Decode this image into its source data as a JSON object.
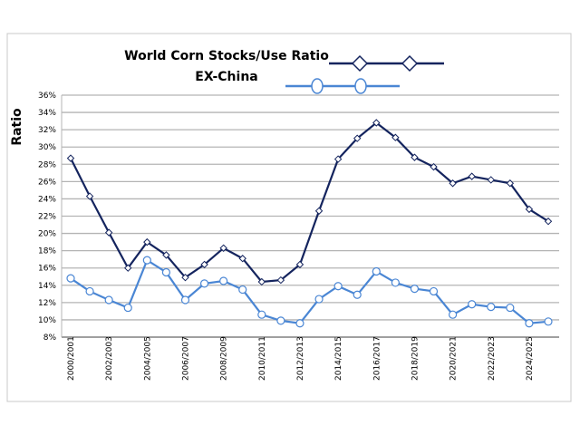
{
  "chart_data": {
    "type": "line",
    "title": "World Corn Stocks/Use Ratio",
    "subtitle": "EX-China",
    "xlabel": "",
    "ylabel": "Ratio",
    "ylim": [
      0.08,
      0.36
    ],
    "ytick_step": 0.02,
    "grid": true,
    "legend_placement": "top-right",
    "categories": [
      "2000/2001",
      "2001/2002",
      "2002/2003",
      "2003/2004",
      "2004/2005",
      "2005/2006",
      "2006/2007",
      "2007/2008",
      "2008/2009",
      "2009/2010",
      "2010/2011",
      "2011/2012",
      "2012/2013",
      "2013/2014",
      "2014/2015",
      "2015/2016",
      "2016/2017",
      "2017/2018",
      "2018/2019",
      "2019/2020",
      "2020/2021",
      "2021/2022",
      "2022/2023",
      "2023/2024",
      "2024/2025",
      "2025/2026"
    ],
    "tick_labels": [
      "2000/2001",
      "2002/2003",
      "2004/2005",
      "2006/2007",
      "2008/2009",
      "2010/2011",
      "2012/2013",
      "2014/2015",
      "2016/2017",
      "2018/2019",
      "2020/2021",
      "2022/2023",
      "2024/2025"
    ],
    "series": [
      {
        "color": "#14245e",
        "marker": "diamond",
        "values": [
          0.287,
          0.243,
          0.201,
          0.16,
          0.19,
          0.175,
          0.149,
          0.164,
          0.183,
          0.171,
          0.144,
          0.146,
          0.164,
          0.226,
          0.286,
          0.31,
          0.328,
          0.311,
          0.288,
          0.277,
          0.258,
          0.266,
          0.262,
          0.258,
          0.228,
          0.214
        ]
      },
      {
        "color": "#4a86d4",
        "marker": "circle",
        "values": [
          0.148,
          0.133,
          0.123,
          0.114,
          0.169,
          0.155,
          0.123,
          0.142,
          0.145,
          0.135,
          0.106,
          0.099,
          0.096,
          0.124,
          0.139,
          0.129,
          0.156,
          0.143,
          0.136,
          0.133,
          0.106,
          0.118,
          0.115,
          0.114,
          0.096,
          0.098
        ]
      }
    ]
  }
}
